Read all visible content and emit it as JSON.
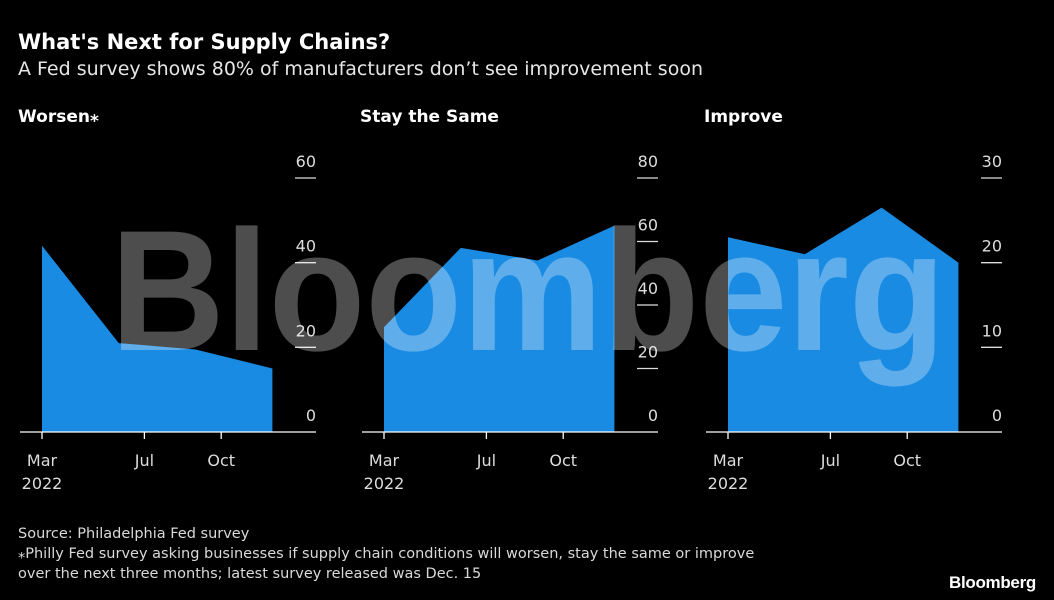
{
  "header": {
    "title": "What's Next for Supply Chains?",
    "subtitle": "A Fed survey shows 80% of manufacturers don’t see improvement soon"
  },
  "footer": {
    "source": "Source: Philadelphia Fed survey",
    "note_line1": "⁎Philly Fed survey asking businesses if supply chain conditions will worsen, stay the same or improve",
    "note_line2": "over the next three months; latest survey released was Dec. 15",
    "logo": "Bloomberg"
  },
  "watermark": "Bloomberg",
  "colors": {
    "area": "#1a8be3",
    "background": "#000000",
    "axis": "#ffffff"
  },
  "chart_data": [
    {
      "type": "area",
      "title": "Worsen⁎",
      "x": [
        "2022-03",
        "2022-06",
        "2022-09",
        "2022-12"
      ],
      "values": [
        44,
        21,
        19.5,
        15
      ],
      "ylim": [
        0,
        60
      ],
      "yticks": [
        "0",
        "20",
        "40",
        "60"
      ],
      "xticks": [
        {
          "label": "Mar",
          "sub": "2022",
          "month": "2022-03"
        },
        {
          "label": "Jul",
          "sub": "",
          "month": "2022-07"
        },
        {
          "label": "Oct",
          "sub": "",
          "month": "2022-10"
        }
      ],
      "y_axis_side": "right",
      "grid": false
    },
    {
      "type": "area",
      "title": "Stay the Same",
      "x": [
        "2022-03",
        "2022-06",
        "2022-09",
        "2022-12"
      ],
      "values": [
        33,
        58,
        54,
        65
      ],
      "ylim": [
        0,
        80
      ],
      "yticks": [
        "0",
        "20",
        "40",
        "60",
        "80"
      ],
      "xticks": [
        {
          "label": "Mar",
          "sub": "2022",
          "month": "2022-03"
        },
        {
          "label": "Jul",
          "sub": "",
          "month": "2022-07"
        },
        {
          "label": "Oct",
          "sub": "",
          "month": "2022-10"
        }
      ],
      "y_axis_side": "right",
      "grid": false
    },
    {
      "type": "area",
      "title": "Improve",
      "x": [
        "2022-03",
        "2022-06",
        "2022-09",
        "2022-12"
      ],
      "values": [
        23,
        21,
        26.5,
        20
      ],
      "ylim": [
        0,
        30
      ],
      "yticks": [
        "0",
        "10",
        "20",
        "30"
      ],
      "xticks": [
        {
          "label": "Mar",
          "sub": "2022",
          "month": "2022-03"
        },
        {
          "label": "Jul",
          "sub": "",
          "month": "2022-07"
        },
        {
          "label": "Oct",
          "sub": "",
          "month": "2022-10"
        }
      ],
      "y_axis_side": "right",
      "grid": false
    }
  ]
}
